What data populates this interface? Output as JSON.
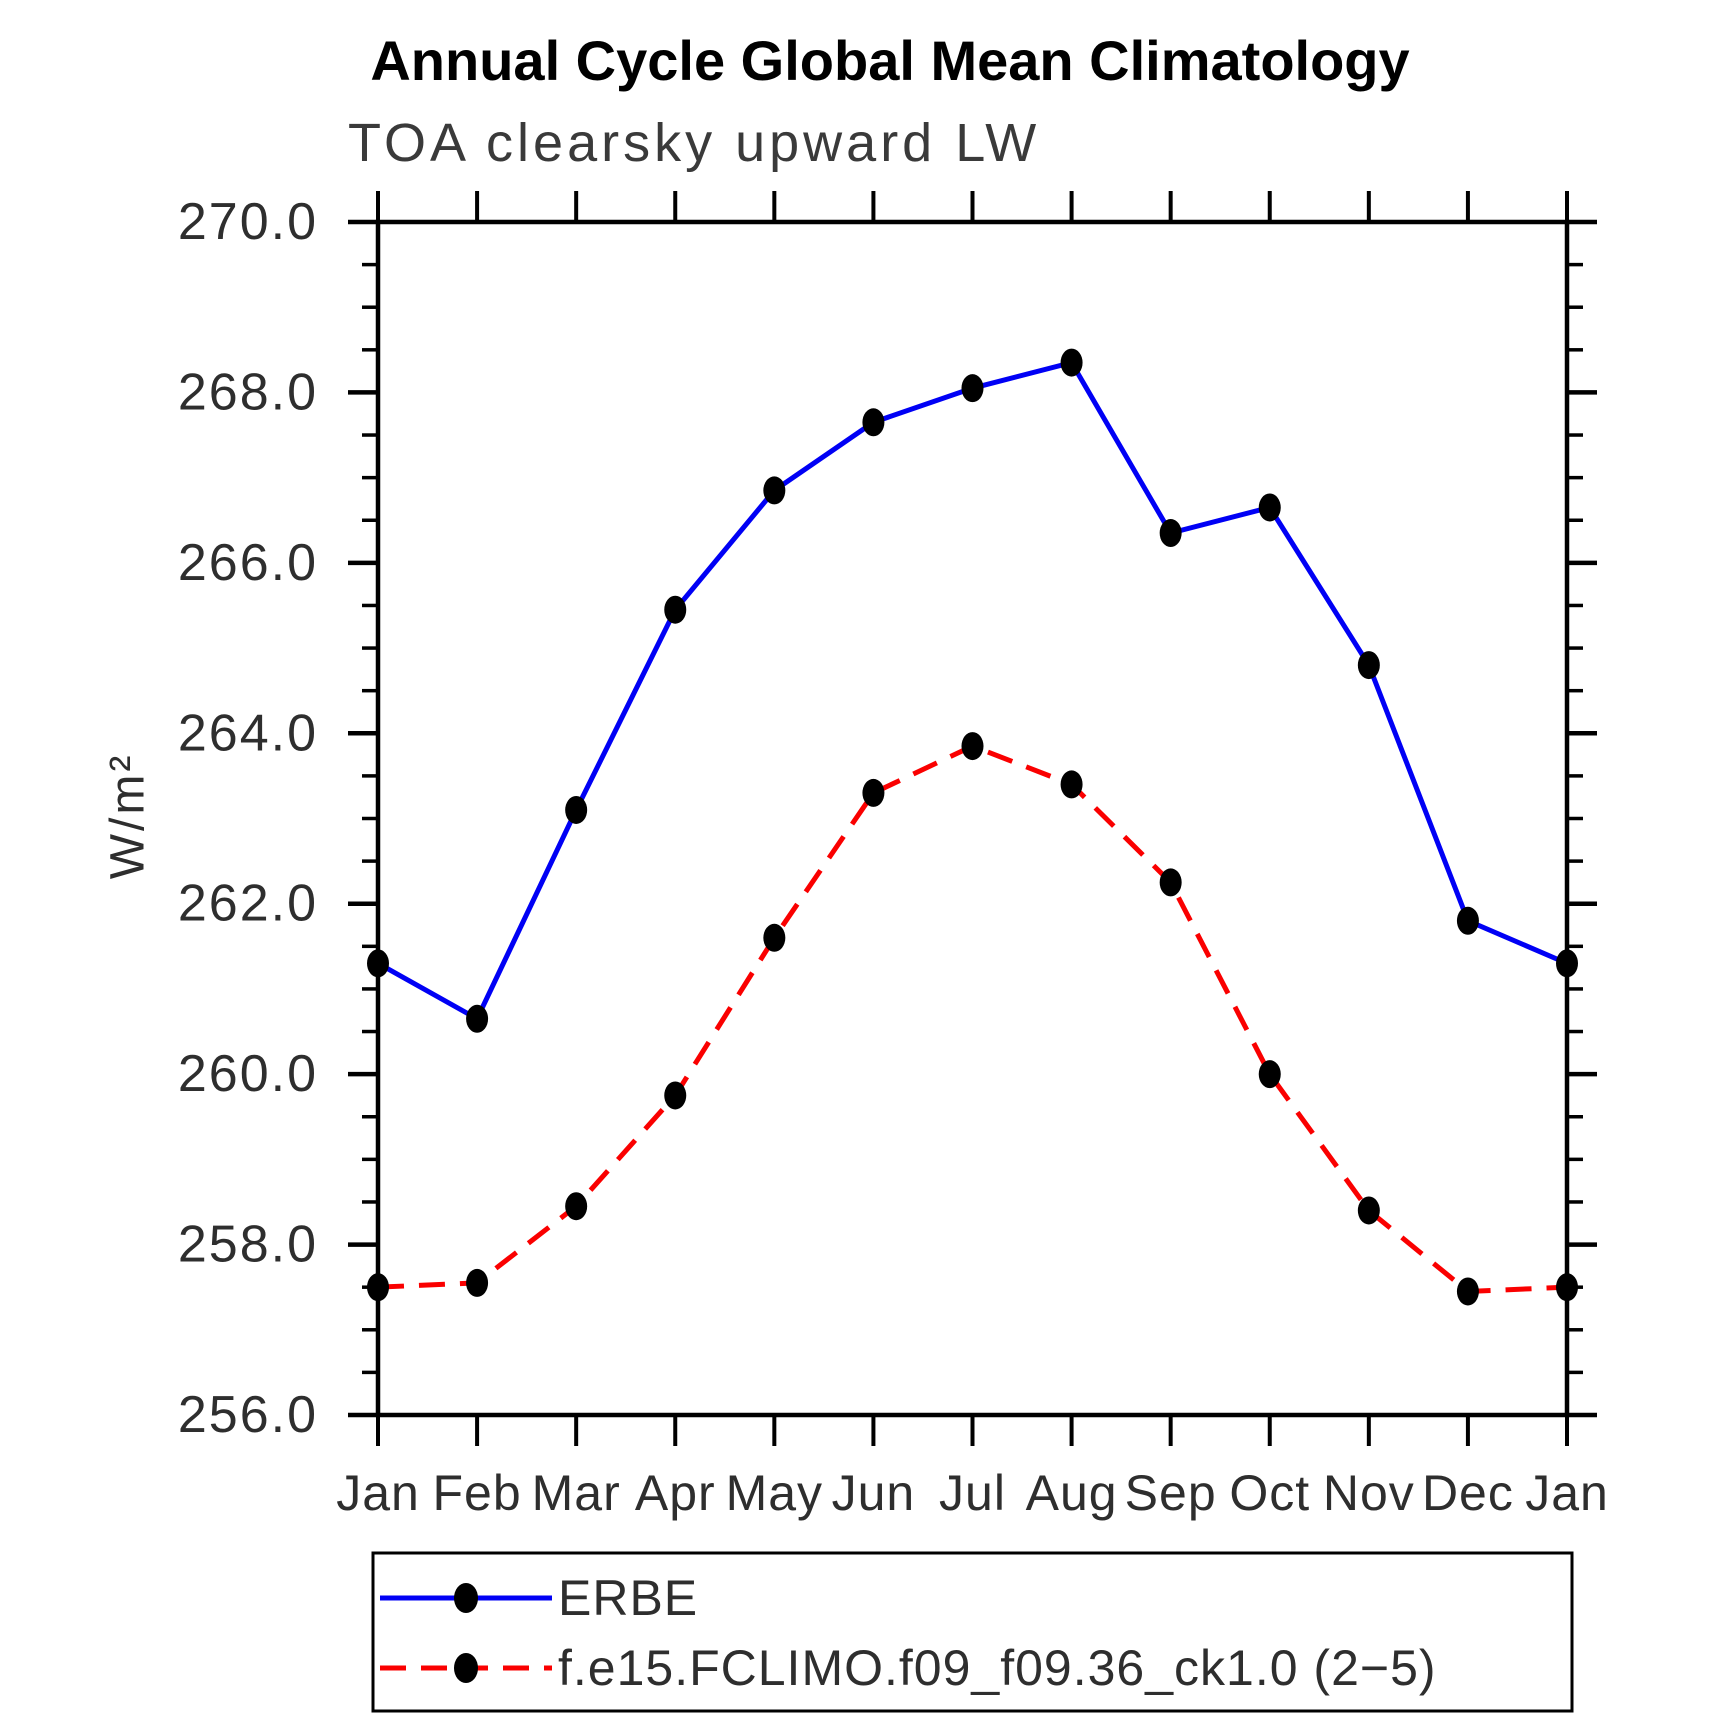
{
  "title": "Annual Cycle Global Mean Climatology",
  "subtitle": "TOA clearsky upward LW",
  "ylabel": "W/m²",
  "chart_data": {
    "type": "line",
    "x_categories": [
      "Jan",
      "Feb",
      "Mar",
      "Apr",
      "May",
      "Jun",
      "Jul",
      "Aug",
      "Sep",
      "Oct",
      "Nov",
      "Dec",
      "Jan"
    ],
    "ylim": [
      256.0,
      270.0
    ],
    "y_major_step": 2.0,
    "y_minor_step": 0.5,
    "y_tick_labels": [
      "256.0",
      "258.0",
      "260.0",
      "262.0",
      "264.0",
      "266.0",
      "268.0",
      "270.0"
    ],
    "grid": false,
    "legend_position": "bottom",
    "series": [
      {
        "name": "ERBE",
        "color": "#0000f5",
        "style": "solid",
        "marker": "filled-circle",
        "marker_color": "#000000",
        "values": [
          261.3,
          260.65,
          263.1,
          265.45,
          266.85,
          267.65,
          268.05,
          268.35,
          266.35,
          266.65,
          264.8,
          261.8,
          261.3
        ]
      },
      {
        "name": "f.e15.FCLIMO.f09_f09.36_ck1.0 (2−5)",
        "color": "#fa0000",
        "style": "dashed",
        "marker": "filled-circle",
        "marker_color": "#000000",
        "values": [
          257.5,
          257.55,
          258.45,
          259.75,
          261.6,
          263.3,
          263.85,
          263.4,
          262.25,
          260.0,
          258.4,
          257.45,
          257.5
        ]
      }
    ]
  }
}
